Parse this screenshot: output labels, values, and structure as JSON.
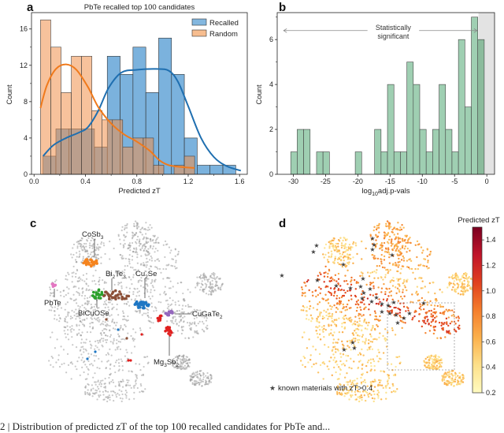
{
  "chart_data": [
    {
      "panel": "a",
      "type": "bar",
      "title": "PbTe recalled top 100 candidates",
      "xlabel": "Predicted zT",
      "ylabel": "Count",
      "xlim": [
        -0.02,
        1.66
      ],
      "ylim": [
        0,
        17.8
      ],
      "xticks": [
        0.0,
        0.4,
        0.8,
        1.2,
        1.6
      ],
      "xtick_labels": [
        "0.0",
        "0.4",
        "0.8",
        "1.2",
        "1.6"
      ],
      "yticks": [
        0,
        4,
        8,
        12,
        16
      ],
      "ytick_labels": [
        "0",
        "4",
        "8",
        "12",
        "16"
      ],
      "legend": {
        "placement": "top-right",
        "entries": [
          "Recalled",
          "Random"
        ]
      },
      "series": [
        {
          "name": "Recalled",
          "color": "#5a9fd4",
          "kde_color": "#1f6fb0",
          "bin_start": 0.07,
          "bin_width": 0.1,
          "values": [
            2,
            5,
            5,
            5,
            3,
            13,
            11,
            14,
            9,
            15,
            11,
            4,
            1,
            1,
            1
          ],
          "kde": [
            [
              0.07,
              2.0
            ],
            [
              0.15,
              3.2
            ],
            [
              0.25,
              4.0
            ],
            [
              0.35,
              4.6
            ],
            [
              0.42,
              5.2
            ],
            [
              0.5,
              7.0
            ],
            [
              0.58,
              9.5
            ],
            [
              0.68,
              11.2
            ],
            [
              0.8,
              11.5
            ],
            [
              0.95,
              11.6
            ],
            [
              1.05,
              11.4
            ],
            [
              1.12,
              10.2
            ],
            [
              1.2,
              7.5
            ],
            [
              1.3,
              4.0
            ],
            [
              1.4,
              1.9
            ],
            [
              1.5,
              0.9
            ],
            [
              1.61,
              0.4
            ]
          ]
        },
        {
          "name": "Random",
          "color": "#f6b27b",
          "kde_color": "#f07a1c",
          "bin_start": 0.05,
          "bin_width": 0.08,
          "values": [
            17,
            14,
            9,
            13,
            13,
            7,
            6,
            6,
            3,
            4,
            4,
            1,
            0,
            1,
            2
          ],
          "kde": [
            [
              0.05,
              7.3
            ],
            [
              0.1,
              9.8
            ],
            [
              0.17,
              11.6
            ],
            [
              0.25,
              12.1
            ],
            [
              0.33,
              11.5
            ],
            [
              0.42,
              9.6
            ],
            [
              0.5,
              7.4
            ],
            [
              0.6,
              5.6
            ],
            [
              0.7,
              4.4
            ],
            [
              0.8,
              3.6
            ],
            [
              0.9,
              2.6
            ],
            [
              0.98,
              1.5
            ],
            [
              1.05,
              1.0
            ],
            [
              1.15,
              0.8
            ],
            [
              1.25,
              0.7
            ]
          ]
        }
      ]
    },
    {
      "panel": "b",
      "type": "bar",
      "title": "",
      "xlabel": "log10 adj. p-vals",
      "xlabel_parts": {
        "pre": "log",
        "sub": "10",
        "post": "adj.p-vals"
      },
      "ylabel": "Count",
      "xlim": [
        -32.5,
        1.2
      ],
      "ylim": [
        0,
        7.2
      ],
      "xticks": [
        -30,
        -25,
        -20,
        -15,
        -10,
        -5,
        0
      ],
      "xtick_labels": [
        "-30",
        "-25",
        "-20",
        "-15",
        "-10",
        "-5",
        "0"
      ],
      "yticks": [
        0,
        2,
        4,
        6
      ],
      "ytick_labels": [
        "0",
        "2",
        "4",
        "6"
      ],
      "bar_color": "#9fcfb2",
      "bar_color_nonsig": "#8bbb9c",
      "shade_color": "#e3e3e3",
      "significance_threshold": -1.3,
      "annotation": {
        "line1": "Statistically",
        "line2": "significant",
        "y": 6.4,
        "from": -31.5,
        "to": -1.5
      },
      "bins": [
        {
          "left": -30.4,
          "value": 1
        },
        {
          "left": -29.4,
          "value": 2
        },
        {
          "left": -28.4,
          "value": 2
        },
        {
          "left": -26.4,
          "value": 1
        },
        {
          "left": -25.4,
          "value": 1
        },
        {
          "left": -20.4,
          "value": 1
        },
        {
          "left": -17.4,
          "value": 2
        },
        {
          "left": -16.4,
          "value": 1
        },
        {
          "left": -15.4,
          "value": 4
        },
        {
          "left": -14.4,
          "value": 1
        },
        {
          "left": -13.4,
          "value": 1
        },
        {
          "left": -12.4,
          "value": 5
        },
        {
          "left": -11.4,
          "value": 4
        },
        {
          "left": -10.4,
          "value": 2
        },
        {
          "left": -9.4,
          "value": 1
        },
        {
          "left": -8.4,
          "value": 2
        },
        {
          "left": -7.4,
          "value": 4
        },
        {
          "left": -6.4,
          "value": 2
        },
        {
          "left": -5.4,
          "value": 1
        },
        {
          "left": -4.4,
          "value": 6
        },
        {
          "left": -3.4,
          "value": 3
        },
        {
          "left": -2.4,
          "value": 7
        },
        {
          "left": -1.4,
          "value": 6
        }
      ],
      "bin_width": 1.0
    },
    {
      "panel": "c",
      "type": "scatter",
      "title": "",
      "description": "t-SNE map of materials, grey background with colored clusters of known thermoelectric families",
      "background_color": "#9a9a9a",
      "labels": [
        {
          "text": "CoSb",
          "sub": "3",
          "color": "#f5841f"
        },
        {
          "text": "Bi",
          "sub": "2",
          "text2": "Te",
          "sub2": "3",
          "color": "#8c5038"
        },
        {
          "text": "Cu",
          "sub": "2",
          "text2": "Se",
          "color": "#1f77c4"
        },
        {
          "text": "PbTe",
          "color": "#e377c2"
        },
        {
          "text": "BiCuOSe",
          "color": "#2ca02c"
        },
        {
          "text": "CuGaTe",
          "sub": "2",
          "color": "#9467bd"
        },
        {
          "text": "Mg",
          "sub": "3",
          "text2": "Sb",
          "sub2": "2",
          "color": "#e0201f"
        }
      ]
    },
    {
      "panel": "d",
      "type": "scatter",
      "title": "",
      "description": "t-SNE map colored by predicted zT with stars marking known materials",
      "colorbar": {
        "label": "Predicted zT",
        "range": [
          0.2,
          1.5
        ],
        "ticks": [
          0.2,
          0.4,
          0.6,
          0.8,
          1.0,
          1.2,
          1.4
        ],
        "tick_labels": [
          "0.2",
          "0.4",
          "0.6",
          "0.8",
          "1.0",
          "1.2",
          "1.4"
        ],
        "colors": [
          "#fffbc0",
          "#fde08a",
          "#fbb04c",
          "#f47d2c",
          "#e0401f",
          "#c0142a",
          "#7a0020"
        ]
      },
      "legend": {
        "text": "known materials with zT>0.4",
        "marker": "star"
      }
    }
  ],
  "caption_fragment": "2 | Distribution of predicted zT of the top 100 recalled candidates for PbTe and..."
}
